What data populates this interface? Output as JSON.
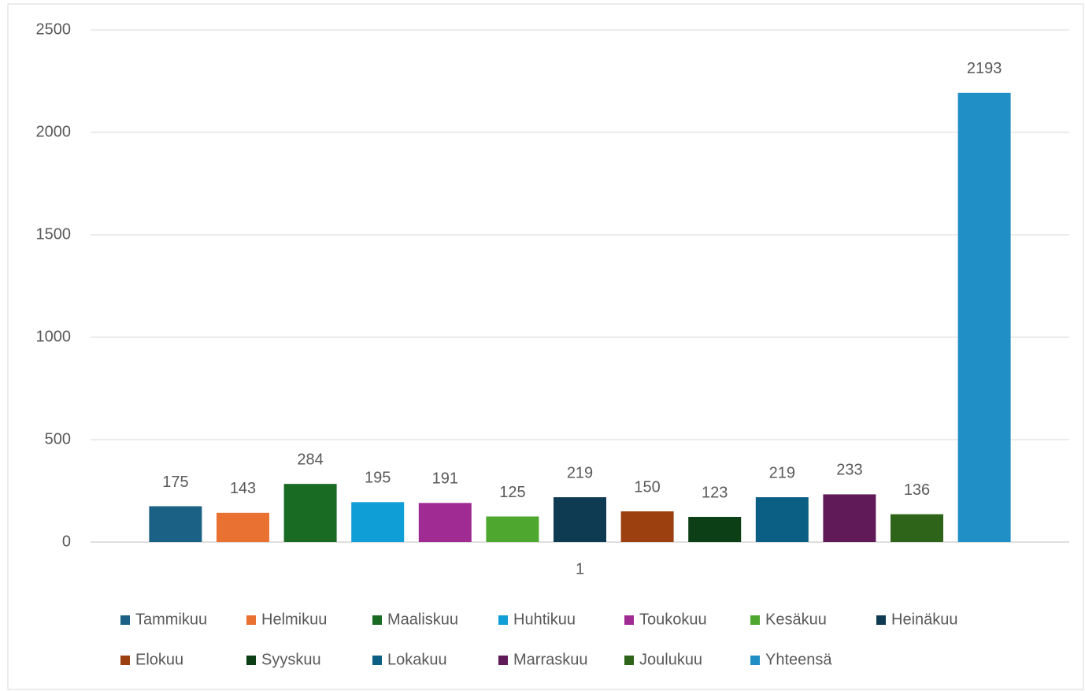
{
  "chart_data": {
    "type": "bar",
    "categories": [
      "1"
    ],
    "series": [
      {
        "name": "Tammikuu",
        "color": "#1a6185",
        "values": [
          175
        ]
      },
      {
        "name": "Helmikuu",
        "color": "#e97132",
        "values": [
          143
        ]
      },
      {
        "name": "Maaliskuu",
        "color": "#196b24",
        "values": [
          284
        ]
      },
      {
        "name": "Huhtikuu",
        "color": "#0f9ed5",
        "values": [
          195
        ]
      },
      {
        "name": "Toukokuu",
        "color": "#a02b93",
        "values": [
          191
        ]
      },
      {
        "name": "Kesäkuu",
        "color": "#4ea72e",
        "values": [
          125
        ]
      },
      {
        "name": "Heinäkuu",
        "color": "#0e3a52",
        "values": [
          219
        ]
      },
      {
        "name": "Elokuu",
        "color": "#9c400f",
        "values": [
          150
        ]
      },
      {
        "name": "Syyskuu",
        "color": "#0c3f15",
        "values": [
          123
        ]
      },
      {
        "name": "Lokakuu",
        "color": "#0b5f85",
        "values": [
          219
        ]
      },
      {
        "name": "Marraskuu",
        "color": "#601a57",
        "values": [
          233
        ]
      },
      {
        "name": "Joulukuu",
        "color": "#2e6419",
        "values": [
          136
        ]
      },
      {
        "name": "Yhteensä",
        "color": "#1f8fc6",
        "values": [
          2193
        ]
      }
    ],
    "ylim": [
      0,
      2500
    ],
    "yticks": [
      0,
      500,
      1000,
      1500,
      2000,
      2500
    ],
    "grid": true,
    "legend": "bottom"
  }
}
